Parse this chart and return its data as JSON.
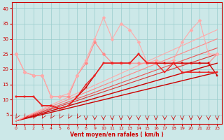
{
  "xlabel": "Vent moyen/en rafales ( km/h )",
  "bg_color": "#cce8e8",
  "grid_color": "#99cccc",
  "x_max": 23,
  "ylim": [
    2,
    42
  ],
  "yticks": [
    5,
    10,
    15,
    20,
    25,
    30,
    35,
    40
  ],
  "smooth_lines": [
    {
      "x": [
        0,
        23
      ],
      "y": [
        3,
        19
      ],
      "color": "#cc0000",
      "lw": 1.0
    },
    {
      "x": [
        0,
        23
      ],
      "y": [
        3,
        22
      ],
      "color": "#cc0000",
      "lw": 1.0
    },
    {
      "x": [
        0,
        23
      ],
      "y": [
        3,
        25
      ],
      "color": "#dd3333",
      "lw": 0.8
    },
    {
      "x": [
        0,
        23
      ],
      "y": [
        3,
        27
      ],
      "color": "#ee5555",
      "lw": 0.8
    },
    {
      "x": [
        0,
        23
      ],
      "y": [
        3,
        30
      ],
      "color": "#ff8888",
      "lw": 0.8
    },
    {
      "x": [
        0,
        23
      ],
      "y": [
        3,
        33
      ],
      "color": "#ffaaaa",
      "lw": 0.8
    }
  ],
  "marker_lines": [
    {
      "x": [
        0,
        1,
        2,
        3,
        4,
        5,
        6,
        7,
        8,
        9,
        10,
        11,
        12,
        13,
        14,
        15,
        16,
        17,
        18,
        19,
        20,
        21,
        22,
        23
      ],
      "y": [
        11,
        11,
        11,
        8,
        8,
        7,
        8,
        11,
        14,
        18,
        22,
        22,
        22,
        22,
        25,
        22,
        22,
        22,
        22,
        22,
        22,
        22,
        22,
        18
      ],
      "color": "#cc0000",
      "marker": "s",
      "markersize": 2.0,
      "linewidth": 1.0,
      "zorder": 5
    },
    {
      "x": [
        0,
        1,
        2,
        3,
        4,
        5,
        6,
        7,
        8,
        9,
        10,
        11,
        12,
        13,
        14,
        15,
        16,
        17,
        18,
        19,
        20,
        21,
        22,
        23
      ],
      "y": [
        11,
        11,
        11,
        8,
        8,
        7,
        8,
        11,
        15,
        18,
        22,
        22,
        22,
        22,
        25,
        22,
        22,
        19,
        22,
        19,
        19,
        19,
        19,
        19
      ],
      "color": "#ee2222",
      "marker": "s",
      "markersize": 2.0,
      "linewidth": 1.0,
      "zorder": 5
    },
    {
      "x": [
        0,
        1,
        2,
        3,
        4,
        5,
        6,
        7,
        8,
        9,
        10,
        11,
        12,
        13,
        14,
        15,
        16,
        17,
        18,
        19,
        20,
        21,
        22,
        23
      ],
      "y": [
        25,
        19,
        18,
        18,
        11,
        11,
        11,
        18,
        22,
        29,
        25,
        22,
        22,
        22,
        22,
        22,
        22,
        22,
        22,
        22,
        22,
        22,
        22,
        25
      ],
      "color": "#ff8888",
      "marker": "D",
      "markersize": 2.5,
      "linewidth": 0.8,
      "zorder": 4
    },
    {
      "x": [
        0,
        1,
        2,
        3,
        4,
        5,
        6,
        7,
        8,
        9,
        10,
        11,
        12,
        13,
        14,
        15,
        16,
        17,
        18,
        19,
        20,
        21,
        22,
        23
      ],
      "y": [
        25,
        19,
        18,
        18,
        11,
        11,
        12,
        18,
        23,
        30,
        37,
        30,
        35,
        33,
        29,
        22,
        23,
        22,
        23,
        29,
        33,
        36,
        25,
        25
      ],
      "color": "#ffaaaa",
      "marker": "D",
      "markersize": 2.5,
      "linewidth": 0.8,
      "zorder": 4
    }
  ],
  "xtick_labels": [
    "0",
    "1",
    "2",
    "3",
    "4",
    "5",
    "6",
    "7",
    "8",
    "9",
    "10",
    "11",
    "12",
    "13",
    "14",
    "15",
    "16",
    "17",
    "18",
    "19",
    "20",
    "21",
    "22",
    "23"
  ],
  "arrow_color": "#cc0000",
  "tick_color": "#cc0000",
  "label_fontsize": 5.5,
  "tick_fontsize": 4.5
}
